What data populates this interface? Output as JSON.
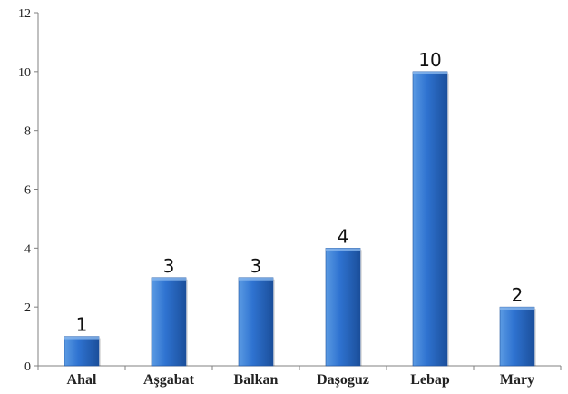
{
  "colors": {
    "bar_light": "#5b9be3",
    "bar_mid": "#2f73d1",
    "bar_dark": "#1b4f9b",
    "axis": "#808080"
  },
  "chart_data": {
    "type": "bar",
    "title": "",
    "xlabel": "",
    "ylabel": "",
    "categories": [
      "Ahal",
      "Aşgabat",
      "Balkan",
      "Daşoguz",
      "Lebap",
      "Mary"
    ],
    "values": [
      1,
      3,
      3,
      4,
      10,
      2
    ],
    "data_labels": [
      "1",
      "3",
      "3",
      "4",
      "10",
      "2"
    ],
    "ylim": [
      0,
      12
    ],
    "yticks": [
      0,
      2,
      4,
      6,
      8,
      10,
      12
    ],
    "ytick_labels": [
      "0",
      "2",
      "4",
      "6",
      "8",
      "10",
      "12"
    ],
    "grid": false,
    "legend": "none"
  }
}
